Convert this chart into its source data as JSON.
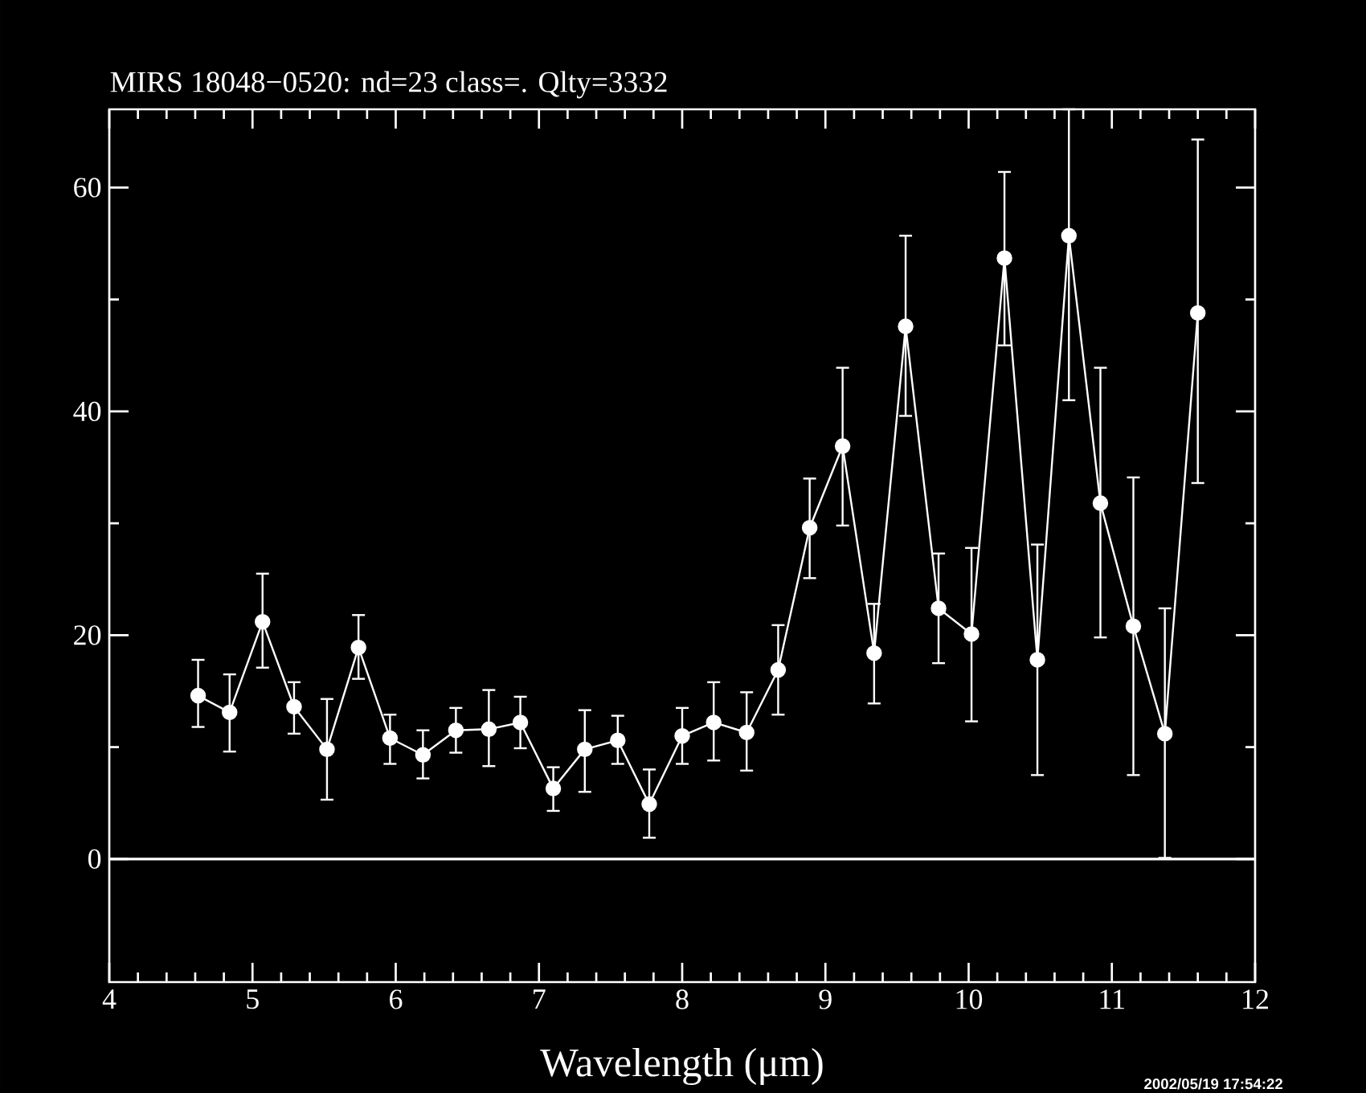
{
  "chart_data": {
    "type": "line",
    "title": "MIRS 18048−0520:    nd=23    class=.    Qlty=3332",
    "xlabel": "Wavelength (μm)",
    "annotations": [
      "2002/05/19 17:54:22"
    ],
    "x": [
      4.62,
      4.84,
      5.07,
      5.29,
      5.52,
      5.74,
      5.96,
      6.19,
      6.42,
      6.65,
      6.87,
      7.1,
      7.32,
      7.55,
      7.77,
      8.0,
      8.22,
      8.45,
      8.67,
      8.89,
      9.12,
      9.34,
      9.56,
      9.79,
      10.02,
      10.25,
      10.48,
      10.7,
      10.92,
      11.15,
      11.37,
      11.6
    ],
    "series": [
      {
        "color": "#ffffff",
        "values": [
          14.6,
          13.1,
          21.2,
          13.6,
          9.8,
          18.9,
          10.8,
          9.3,
          11.5,
          11.6,
          12.2,
          6.3,
          9.8,
          10.6,
          4.9,
          11.0,
          12.2,
          11.3,
          16.9,
          29.6,
          36.9,
          18.4,
          47.6,
          22.4,
          20.1,
          53.7,
          17.8,
          55.7,
          31.8,
          20.8,
          11.2,
          48.8
        ],
        "errors": [
          [
            11.8,
            17.8
          ],
          [
            9.6,
            16.5
          ],
          [
            17.1,
            25.5
          ],
          [
            11.2,
            15.8
          ],
          [
            5.3,
            14.3
          ],
          [
            16.1,
            21.8
          ],
          [
            8.5,
            12.9
          ],
          [
            7.2,
            11.5
          ],
          [
            9.5,
            13.5
          ],
          [
            8.3,
            15.1
          ],
          [
            9.9,
            14.5
          ],
          [
            4.3,
            8.2
          ],
          [
            6.0,
            13.3
          ],
          [
            8.5,
            12.8
          ],
          [
            1.9,
            8.0
          ],
          [
            8.5,
            13.5
          ],
          [
            8.8,
            15.8
          ],
          [
            7.9,
            14.9
          ],
          [
            12.9,
            20.9
          ],
          [
            25.1,
            34.0
          ],
          [
            29.8,
            43.9
          ],
          [
            13.9,
            22.8
          ],
          [
            39.6,
            55.7
          ],
          [
            17.5,
            27.3
          ],
          [
            12.3,
            27.8
          ],
          [
            45.9,
            61.4
          ],
          [
            7.5,
            28.1
          ],
          [
            41.0,
            67
          ],
          [
            19.8,
            43.9
          ],
          [
            7.5,
            34.1
          ],
          [
            0.1,
            22.4
          ],
          [
            33.6,
            64.3
          ]
        ]
      }
    ],
    "xlim": [
      4,
      12
    ],
    "ylim": [
      -11,
      67
    ],
    "xticks": [
      4,
      5,
      6,
      7,
      8,
      9,
      10,
      11,
      12
    ],
    "yticks": [
      0,
      20,
      40,
      60
    ],
    "ref_lines": [
      {
        "axis": "y",
        "value": 0,
        "color": "#ffffff"
      }
    ],
    "marker": "circle",
    "line_style": "solid",
    "grid": false
  }
}
